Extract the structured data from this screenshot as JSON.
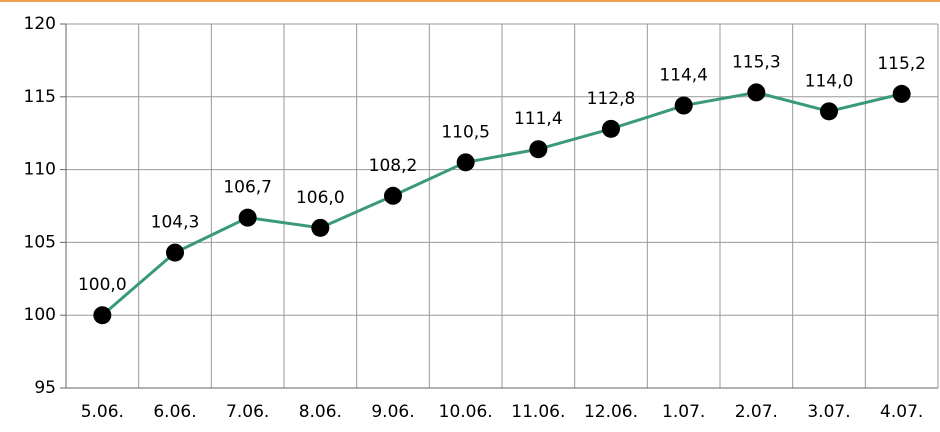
{
  "chart_data": {
    "type": "line",
    "categories": [
      "5.06.",
      "6.06.",
      "7.06.",
      "8.06.",
      "9.06.",
      "10.06.",
      "11.06.",
      "12.06.",
      "1.07.",
      "2.07.",
      "3.07.",
      "4.07."
    ],
    "values": [
      100.0,
      104.3,
      106.7,
      106.0,
      108.2,
      110.5,
      111.4,
      112.8,
      114.4,
      115.3,
      114.0,
      115.2
    ],
    "value_labels": [
      "100,0",
      "104,3",
      "106,7",
      "106,0",
      "108,2",
      "110,5",
      "111,4",
      "112,8",
      "114,4",
      "115,3",
      "114,0",
      "115,2"
    ],
    "color": "#3a9a78",
    "ylim": [
      95,
      120
    ],
    "yticks": [
      95,
      100,
      105,
      110,
      115,
      120
    ],
    "grid": true
  }
}
